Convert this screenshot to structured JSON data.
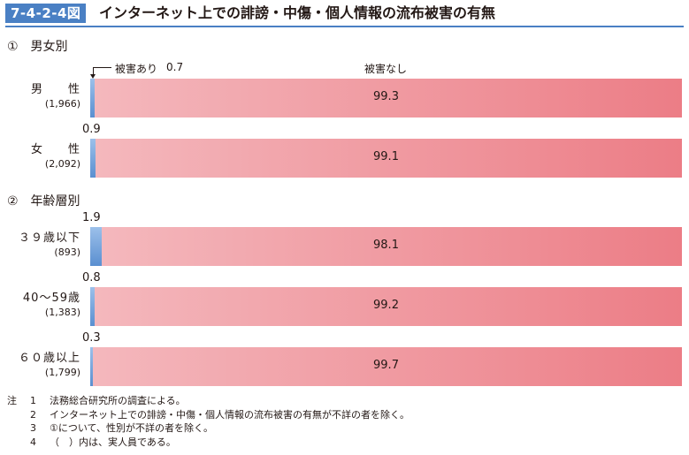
{
  "figure_number": "7-4-2-4図",
  "title": "インターネット上での誹謗・中傷・個人情報の流布被害の有無",
  "colors": {
    "accent": "#4a80c4",
    "damaged": "#6b9bd6",
    "not_damaged": "#ef8f97"
  },
  "legend": {
    "damaged": "被害あり",
    "not_damaged": "被害なし"
  },
  "sections": [
    {
      "title": "①　男女別"
    },
    {
      "title": "②　年齢層別"
    }
  ],
  "chart_data": {
    "type": "bar",
    "orientation": "horizontal",
    "stacked": true,
    "unit": "%",
    "xlim": [
      0,
      100
    ],
    "series_names": [
      "被害あり",
      "被害なし"
    ],
    "rows": [
      {
        "section": 0,
        "label": "男　　性",
        "n": "(1,966)",
        "damaged": 0.7,
        "not_damaged": 99.3,
        "damaged_label": "0.7",
        "not_damaged_label": "99.3"
      },
      {
        "section": 0,
        "label": "女　　性",
        "n": "(2,092)",
        "damaged": 0.9,
        "not_damaged": 99.1,
        "damaged_label": "0.9",
        "not_damaged_label": "99.1"
      },
      {
        "section": 1,
        "label": "３９歳以下",
        "n": "(893)",
        "damaged": 1.9,
        "not_damaged": 98.1,
        "damaged_label": "1.9",
        "not_damaged_label": "98.1"
      },
      {
        "section": 1,
        "label": "40～59歳",
        "n": "(1,383)",
        "damaged": 0.8,
        "not_damaged": 99.2,
        "damaged_label": "0.8",
        "not_damaged_label": "99.2"
      },
      {
        "section": 1,
        "label": "６０歳以上",
        "n": "(1,799)",
        "damaged": 0.3,
        "not_damaged": 99.7,
        "damaged_label": "0.3",
        "not_damaged_label": "99.7"
      }
    ]
  },
  "notes": {
    "mark": "注",
    "items": [
      {
        "num": "1",
        "text": "法務総合研究所の調査による。"
      },
      {
        "num": "2",
        "text": "インターネット上での誹謗・中傷・個人情報の流布被害の有無が不詳の者を除く。"
      },
      {
        "num": "3",
        "text": "①について、性別が不詳の者を除く。"
      },
      {
        "num": "4",
        "text": "（　）内は、実人員である。"
      }
    ]
  }
}
